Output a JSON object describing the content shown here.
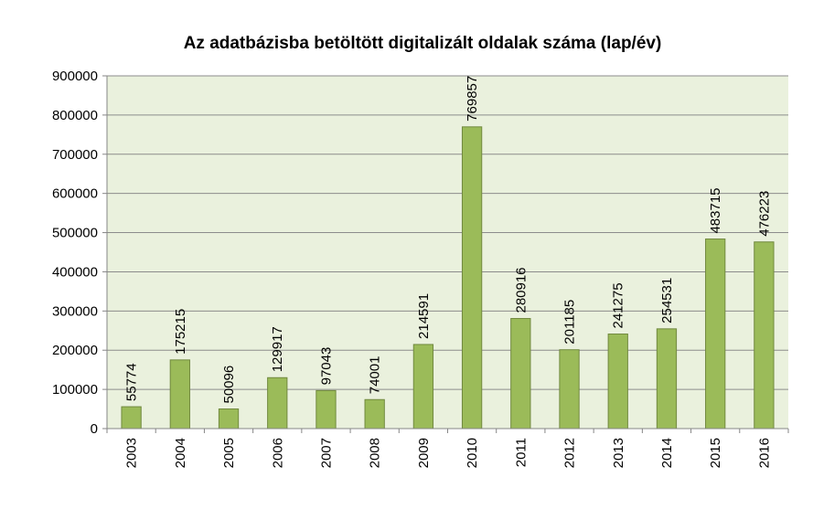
{
  "chart_data": {
    "type": "bar",
    "title": "Az adatbázisba betöltött digitalizált oldalak száma (lap/év)",
    "xlabel": "",
    "ylabel": "",
    "categories": [
      "2003",
      "2004",
      "2005",
      "2006",
      "2007",
      "2008",
      "2009",
      "2010",
      "2011",
      "2012",
      "2013",
      "2014",
      "2015",
      "2016"
    ],
    "values": [
      55774,
      175215,
      50096,
      129917,
      97043,
      74001,
      214591,
      769857,
      280916,
      201185,
      241275,
      254531,
      483715,
      476223
    ],
    "ylim": [
      0,
      900000
    ],
    "yticks": [
      "0",
      "100000",
      "200000",
      "300000",
      "400000",
      "500000",
      "600000",
      "700000",
      "800000",
      "900000"
    ],
    "grid": true,
    "legend": "none",
    "colors": {
      "bar_fill": "#9bbb59",
      "bar_stroke": "#71893f",
      "plot_background": "#eaf1dd",
      "gridline": "#8c8c8c",
      "axis": "#868686"
    }
  }
}
